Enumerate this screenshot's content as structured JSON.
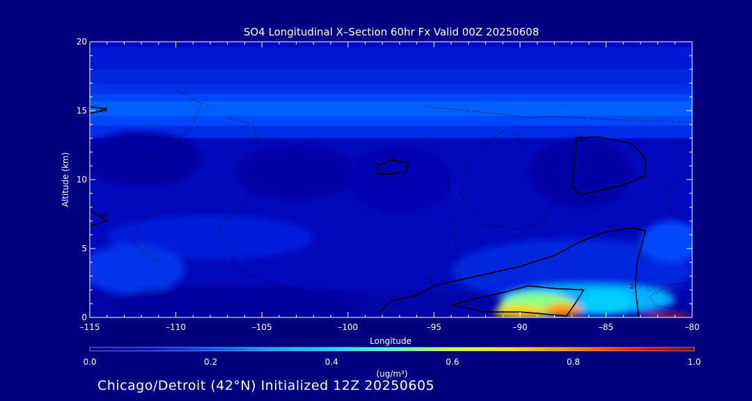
{
  "chart_data": {
    "type": "heatmap",
    "title": "SO4 Longitudinal X–Section 60hr  Fx Valid 00Z 20250608",
    "xlabel": "Longitude",
    "ylabel": "Altitude (km)",
    "xlim": [
      -115,
      -80
    ],
    "ylim": [
      0,
      20
    ],
    "x_ticks": [
      -115,
      -110,
      -105,
      -100,
      -95,
      -90,
      -85,
      -80
    ],
    "x_tick_labels": [
      "–115",
      "–110",
      "–105",
      "–100",
      "–95",
      "–90",
      "–85",
      "–80"
    ],
    "y_ticks": [
      0,
      5,
      10,
      15,
      20
    ],
    "y_tick_labels": [
      "0",
      "5",
      "10",
      "15",
      "20"
    ],
    "colorbar": {
      "label": "(ug/m³)",
      "range": [
        0.0,
        1.0
      ],
      "ticks": [
        0.0,
        0.2,
        0.4,
        0.6,
        0.8,
        1.0
      ],
      "tick_labels": [
        "0.0",
        "0.2",
        "0.4",
        "0.6",
        "0.8",
        "1.0"
      ]
    },
    "background_bands": [
      {
        "z0": 19.6,
        "z1": 20.0,
        "value": 0.1
      },
      {
        "z0": 18.0,
        "z1": 19.6,
        "value": 0.12
      },
      {
        "z0": 17.0,
        "z1": 18.0,
        "value": 0.14
      },
      {
        "z0": 16.2,
        "z1": 17.0,
        "value": 0.16
      },
      {
        "z0": 15.7,
        "z1": 16.2,
        "value": 0.19
      },
      {
        "z0": 14.6,
        "z1": 15.7,
        "value": 0.22
      },
      {
        "z0": 13.9,
        "z1": 14.6,
        "value": 0.19
      },
      {
        "z0": 13.0,
        "z1": 13.9,
        "value": 0.15
      },
      {
        "z0": 2.0,
        "z1": 13.0,
        "value": 0.08
      },
      {
        "z0": 0.0,
        "z1": 2.0,
        "value": 0.05
      }
    ],
    "plumes": [
      {
        "lon": -112.0,
        "alt": 11.5,
        "rx": 3.5,
        "rz": 2.0,
        "value": 0.03
      },
      {
        "lon": -103.0,
        "alt": 10.5,
        "rx": 3.5,
        "rz": 2.0,
        "value": 0.04
      },
      {
        "lon": -97.0,
        "alt": 10.0,
        "rx": 3.0,
        "rz": 2.5,
        "value": 0.06
      },
      {
        "lon": -86.5,
        "alt": 10.5,
        "rx": 3.0,
        "rz": 2.5,
        "value": 0.04
      },
      {
        "lon": -108.0,
        "alt": 5.8,
        "rx": 6.0,
        "rz": 1.6,
        "value": 0.13
      },
      {
        "lon": -112.5,
        "alt": 3.5,
        "rx": 3.0,
        "rz": 1.8,
        "value": 0.16
      },
      {
        "lon": -87.0,
        "alt": 3.4,
        "rx": 7.0,
        "rz": 2.3,
        "value": 0.14
      },
      {
        "lon": -81.2,
        "alt": 5.5,
        "rx": 1.8,
        "rz": 1.5,
        "value": 0.19
      },
      {
        "lon": -106.5,
        "alt": 1.0,
        "rx": 7.5,
        "rz": 1.3,
        "value": 0.03
      },
      {
        "lon": -86.0,
        "alt": 1.3,
        "rx": 5.0,
        "rz": 1.1,
        "value": 0.33
      },
      {
        "lon": -89.0,
        "alt": 0.9,
        "rx": 2.2,
        "rz": 0.9,
        "value": 0.55
      },
      {
        "lon": -85.0,
        "alt": 1.1,
        "rx": 1.5,
        "rz": 0.9,
        "value": 0.38
      },
      {
        "lon": -90.0,
        "alt": 0.4,
        "rx": 1.5,
        "rz": 0.45,
        "value": 0.72
      },
      {
        "lon": -87.5,
        "alt": 0.55,
        "rx": 1.1,
        "rz": 0.45,
        "value": 0.78
      },
      {
        "lon": -81.5,
        "alt": 0.1,
        "rx": 1.5,
        "rz": 0.15,
        "value": 0.88
      }
    ],
    "contours": [
      {
        "style": "solid",
        "label": "10",
        "label_lon": -114.2,
        "label_alt": 14.9,
        "points": [
          [
            -115.0,
            15.3
          ],
          [
            -114.0,
            15.1
          ],
          [
            -115.0,
            14.8
          ]
        ]
      },
      {
        "style": "solid",
        "label": "10",
        "label_lon": -97.5,
        "label_alt": 11.3,
        "points": [
          [
            -98.3,
            11.0
          ],
          [
            -97.5,
            11.4
          ],
          [
            -96.5,
            11.2
          ],
          [
            -96.6,
            10.6
          ],
          [
            -97.5,
            10.4
          ],
          [
            -98.3,
            10.4
          ],
          [
            -98.3,
            11.0
          ]
        ]
      },
      {
        "style": "solid",
        "label": "10",
        "label_lon": -86.6,
        "label_alt": 12.8,
        "points": [
          [
            -86.7,
            13.0
          ],
          [
            -85.5,
            13.1
          ],
          [
            -83.5,
            12.6
          ],
          [
            -82.7,
            11.5
          ],
          [
            -82.7,
            10.3
          ],
          [
            -84.0,
            9.6
          ],
          [
            -86.5,
            8.9
          ],
          [
            -87.0,
            9.5
          ],
          [
            -86.8,
            11.5
          ],
          [
            -86.7,
            13.0
          ]
        ]
      },
      {
        "style": "solid",
        "label": "10",
        "label_lon": -114.2,
        "label_alt": 7.3,
        "points": [
          [
            -115.0,
            7.8
          ],
          [
            -114.0,
            7.0
          ],
          [
            -115.0,
            6.6
          ]
        ]
      },
      {
        "style": "solid",
        "label": "2",
        "label_lon": -95.2,
        "label_alt": 2.5,
        "points": [
          [
            -98.2,
            0.3
          ],
          [
            -97.5,
            1.2
          ],
          [
            -96.0,
            1.6
          ],
          [
            -95.0,
            2.3
          ],
          [
            -92.5,
            3.0
          ],
          [
            -90.0,
            3.7
          ],
          [
            -88.0,
            4.5
          ],
          [
            -86.5,
            5.5
          ],
          [
            -85.0,
            6.2
          ],
          [
            -83.5,
            6.5
          ],
          [
            -82.7,
            6.3
          ],
          [
            -83.2,
            4.0
          ],
          [
            -83.3,
            2.2
          ],
          [
            -83.1,
            0.0
          ]
        ]
      },
      {
        "style": "solid",
        "label": "2",
        "label_lon": -83.5,
        "label_alt": 2.1,
        "points": [
          [
            -94.0,
            0.9
          ],
          [
            -92.5,
            1.4
          ],
          [
            -91.0,
            1.8
          ],
          [
            -89.5,
            2.3
          ],
          [
            -88.0,
            2.1
          ],
          [
            -86.3,
            2.0
          ],
          [
            -86.8,
            1.0
          ],
          [
            -87.3,
            0.1
          ],
          [
            -89.0,
            0.3
          ],
          [
            -90.0,
            0.4
          ],
          [
            -90.1,
            0.4
          ],
          [
            -92.0,
            0.4
          ],
          [
            -94.0,
            0.9
          ]
        ]
      },
      {
        "style": "dotted",
        "label": "",
        "label_lon": 0,
        "label_alt": 0,
        "points": [
          [
            -110.0,
            16.5
          ],
          [
            -108.5,
            15.5
          ],
          [
            -109.0,
            14.0
          ],
          [
            -110.5,
            12.0
          ],
          [
            -112.5,
            11.0
          ],
          [
            -114.0,
            10.5
          ]
        ]
      },
      {
        "style": "dotted",
        "label": "",
        "label_lon": 0,
        "label_alt": 0,
        "points": [
          [
            -107.0,
            14.5
          ],
          [
            -105.5,
            14.0
          ],
          [
            -105.0,
            11.0
          ],
          [
            -106.0,
            8.5
          ],
          [
            -107.5,
            6.5
          ],
          [
            -106.5,
            3.5
          ],
          [
            -104.5,
            2.6
          ],
          [
            -103.0,
            2.0
          ]
        ]
      },
      {
        "style": "dotted",
        "label": "",
        "label_lon": 0,
        "label_alt": 0,
        "points": [
          [
            -95.5,
            15.3
          ],
          [
            -93.0,
            15.0
          ],
          [
            -91.5,
            14.8
          ],
          [
            -89.5,
            14.5
          ],
          [
            -88.0,
            14.6
          ],
          [
            -84.0,
            14.3
          ],
          [
            -80.0,
            14.2
          ]
        ]
      },
      {
        "style": "dotted",
        "label": "",
        "label_lon": 0,
        "label_alt": 0,
        "points": [
          [
            -91.0,
            13.5
          ],
          [
            -93.0,
            11.5
          ],
          [
            -93.5,
            9.0
          ],
          [
            -92.0,
            6.7
          ],
          [
            -90.0,
            6.4
          ],
          [
            -88.5,
            7.0
          ],
          [
            -88.0,
            9.0
          ],
          [
            -88.5,
            11.0
          ],
          [
            -90.5,
            13.5
          ]
        ]
      },
      {
        "style": "dotted",
        "label": "",
        "label_lon": 0,
        "label_alt": 0,
        "points": [
          [
            -95.5,
            13.0
          ],
          [
            -94.2,
            10.5
          ],
          [
            -94.0,
            8.0
          ],
          [
            -93.8,
            5.5
          ],
          [
            -93.5,
            3.0
          ]
        ]
      },
      {
        "style": "dotted",
        "label": "",
        "label_lon": 0,
        "label_alt": 0,
        "points": [
          [
            -110.5,
            8.0
          ],
          [
            -112.0,
            7.0
          ],
          [
            -112.5,
            5.5
          ],
          [
            -111.0,
            4.0
          ]
        ]
      },
      {
        "style": "dotted",
        "label": "",
        "label_lon": 0,
        "label_alt": 0,
        "points": [
          [
            -80.2,
            10.5
          ],
          [
            -81.5,
            9.0
          ],
          [
            -81.2,
            7.5
          ],
          [
            -80.0,
            7.0
          ]
        ]
      },
      {
        "style": "dotted",
        "label": "",
        "label_lon": 0,
        "label_alt": 0,
        "points": [
          [
            -80.0,
            2.6
          ],
          [
            -81.3,
            2.4
          ],
          [
            -82.5,
            1.5
          ],
          [
            -82.0,
            0.8
          ],
          [
            -80.0,
            0.4
          ]
        ]
      }
    ]
  },
  "footer": "Chicago/Detroit (42°N) Initialized 12Z 20250605"
}
